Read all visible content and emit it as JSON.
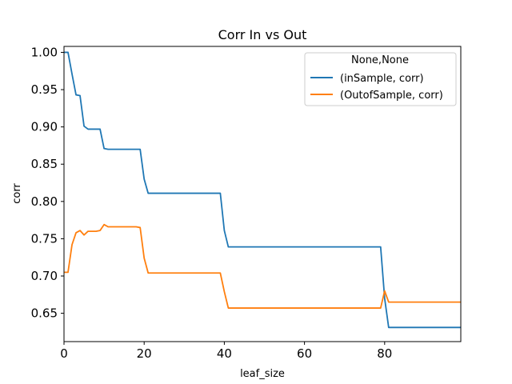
{
  "chart_data": {
    "type": "line",
    "title": "Corr In vs Out",
    "xlabel": "leaf_size",
    "ylabel": "corr",
    "xlim": [
      0,
      99
    ],
    "ylim": [
      0.612,
      1.008
    ],
    "xticks": [
      0,
      20,
      40,
      60,
      80
    ],
    "xtick_labels": [
      "0",
      "20",
      "40",
      "60",
      "80"
    ],
    "yticks": [
      0.65,
      0.7,
      0.75,
      0.8,
      0.85,
      0.9,
      0.95,
      1.0
    ],
    "ytick_labels": [
      "0.65",
      "0.70",
      "0.75",
      "0.80",
      "0.85",
      "0.90",
      "0.95",
      "1.00"
    ],
    "grid": false,
    "legend": {
      "title": "None,None",
      "placement": "top-right"
    },
    "series": [
      {
        "name": "(inSample, corr)",
        "color": "#1f77b4",
        "x": [
          0,
          1,
          2,
          3,
          4,
          5,
          6,
          7,
          8,
          9,
          10,
          11,
          12,
          13,
          14,
          15,
          16,
          17,
          18,
          19,
          20,
          21,
          22,
          23,
          24,
          25,
          26,
          27,
          28,
          29,
          30,
          31,
          32,
          33,
          34,
          35,
          36,
          37,
          38,
          39,
          40,
          41,
          42,
          43,
          44,
          45,
          46,
          47,
          48,
          49,
          50,
          51,
          52,
          53,
          54,
          55,
          56,
          57,
          58,
          59,
          60,
          61,
          62,
          63,
          64,
          65,
          66,
          67,
          68,
          69,
          70,
          71,
          72,
          73,
          74,
          75,
          76,
          77,
          78,
          79,
          80,
          81,
          82,
          83,
          84,
          85,
          86,
          87,
          88,
          89,
          90,
          91,
          92,
          93,
          94,
          95,
          96,
          97,
          98,
          99
        ],
        "y": [
          1.0,
          1.0,
          0.971,
          0.943,
          0.942,
          0.901,
          0.897,
          0.897,
          0.897,
          0.897,
          0.871,
          0.87,
          0.87,
          0.87,
          0.87,
          0.87,
          0.87,
          0.87,
          0.87,
          0.87,
          0.83,
          0.811,
          0.811,
          0.811,
          0.811,
          0.811,
          0.811,
          0.811,
          0.811,
          0.811,
          0.811,
          0.811,
          0.811,
          0.811,
          0.811,
          0.811,
          0.811,
          0.811,
          0.811,
          0.811,
          0.761,
          0.739,
          0.739,
          0.739,
          0.739,
          0.739,
          0.739,
          0.739,
          0.739,
          0.739,
          0.739,
          0.739,
          0.739,
          0.739,
          0.739,
          0.739,
          0.739,
          0.739,
          0.739,
          0.739,
          0.739,
          0.739,
          0.739,
          0.739,
          0.739,
          0.739,
          0.739,
          0.739,
          0.739,
          0.739,
          0.739,
          0.739,
          0.739,
          0.739,
          0.739,
          0.739,
          0.739,
          0.739,
          0.739,
          0.739,
          0.67,
          0.631,
          0.631,
          0.631,
          0.631,
          0.631,
          0.631,
          0.631,
          0.631,
          0.631,
          0.631,
          0.631,
          0.631,
          0.631,
          0.631,
          0.631,
          0.631,
          0.631,
          0.631,
          0.631
        ]
      },
      {
        "name": "(OutofSample, corr)",
        "color": "#ff7f0e",
        "x": [
          0,
          1,
          2,
          3,
          4,
          5,
          6,
          7,
          8,
          9,
          10,
          11,
          12,
          13,
          14,
          15,
          16,
          17,
          18,
          19,
          20,
          21,
          22,
          23,
          24,
          25,
          26,
          27,
          28,
          29,
          30,
          31,
          32,
          33,
          34,
          35,
          36,
          37,
          38,
          39,
          40,
          41,
          42,
          43,
          44,
          45,
          46,
          47,
          48,
          49,
          50,
          51,
          52,
          53,
          54,
          55,
          56,
          57,
          58,
          59,
          60,
          61,
          62,
          63,
          64,
          65,
          66,
          67,
          68,
          69,
          70,
          71,
          72,
          73,
          74,
          75,
          76,
          77,
          78,
          79,
          80,
          81,
          82,
          83,
          84,
          85,
          86,
          87,
          88,
          89,
          90,
          91,
          92,
          93,
          94,
          95,
          96,
          97,
          98,
          99
        ],
        "y": [
          0.705,
          0.705,
          0.742,
          0.758,
          0.761,
          0.755,
          0.76,
          0.76,
          0.76,
          0.761,
          0.769,
          0.766,
          0.766,
          0.766,
          0.766,
          0.766,
          0.766,
          0.766,
          0.766,
          0.765,
          0.724,
          0.704,
          0.704,
          0.704,
          0.704,
          0.704,
          0.704,
          0.704,
          0.704,
          0.704,
          0.704,
          0.704,
          0.704,
          0.704,
          0.704,
          0.704,
          0.704,
          0.704,
          0.704,
          0.704,
          0.679,
          0.657,
          0.657,
          0.657,
          0.657,
          0.657,
          0.657,
          0.657,
          0.657,
          0.657,
          0.657,
          0.657,
          0.657,
          0.657,
          0.657,
          0.657,
          0.657,
          0.657,
          0.657,
          0.657,
          0.657,
          0.657,
          0.657,
          0.657,
          0.657,
          0.657,
          0.657,
          0.657,
          0.657,
          0.657,
          0.657,
          0.657,
          0.657,
          0.657,
          0.657,
          0.657,
          0.657,
          0.657,
          0.657,
          0.657,
          0.68,
          0.665,
          0.665,
          0.665,
          0.665,
          0.665,
          0.665,
          0.665,
          0.665,
          0.665,
          0.665,
          0.665,
          0.665,
          0.665,
          0.665,
          0.665,
          0.665,
          0.665,
          0.665,
          0.665
        ]
      }
    ]
  }
}
